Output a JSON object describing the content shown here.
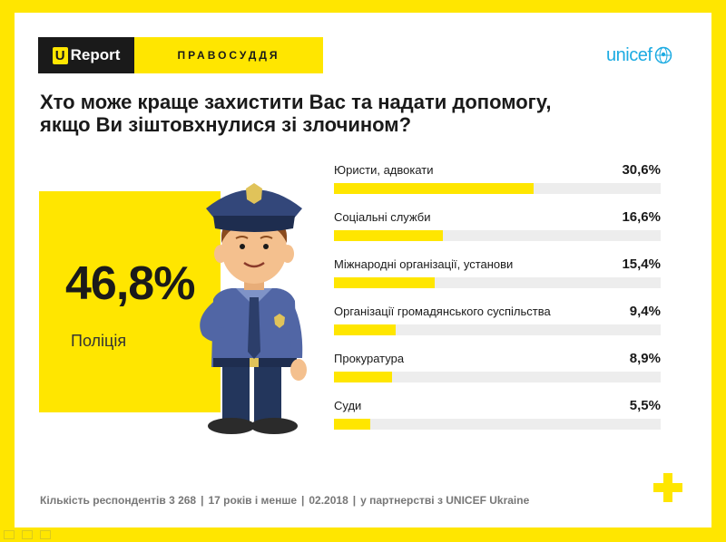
{
  "header": {
    "logo_u": "U",
    "logo_text": "Report",
    "section": "ПРАВОСУДДЯ"
  },
  "brand": {
    "unicef": "unicef",
    "accent_color": "#FFE600",
    "unicef_color": "#1CABE2"
  },
  "title": {
    "line1": "Хто може краще захистити Вас та надати допомогу,",
    "line2": "якщо Ви зіштовхнулися зі злочином?"
  },
  "highlight": {
    "value": "46,8%",
    "label": "Поліція",
    "icon": "police-officer-illustration"
  },
  "chart_data": {
    "type": "bar",
    "orientation": "horizontal",
    "categories": [
      "Юристи, адвокати",
      "Соціальні служби",
      "Міжнародні організації, установи",
      "Організації громадянського суспільства",
      "Прокуратура",
      "Суди"
    ],
    "values": [
      30.6,
      16.6,
      15.4,
      9.4,
      8.9,
      5.5
    ],
    "value_labels": [
      "30,6%",
      "16,6%",
      "15,4%",
      "9,4%",
      "8,9%",
      "5,5%"
    ],
    "bar_color": "#FFE600",
    "track_color": "#EDEDED",
    "xlim": [
      0,
      50
    ]
  },
  "footer": {
    "respondents": "Кількість респондентів 3 268",
    "age": "17 років і менше",
    "date": "02.2018",
    "partner": "у партнерстві з UNICEF Ukraine",
    "separator": "|"
  }
}
